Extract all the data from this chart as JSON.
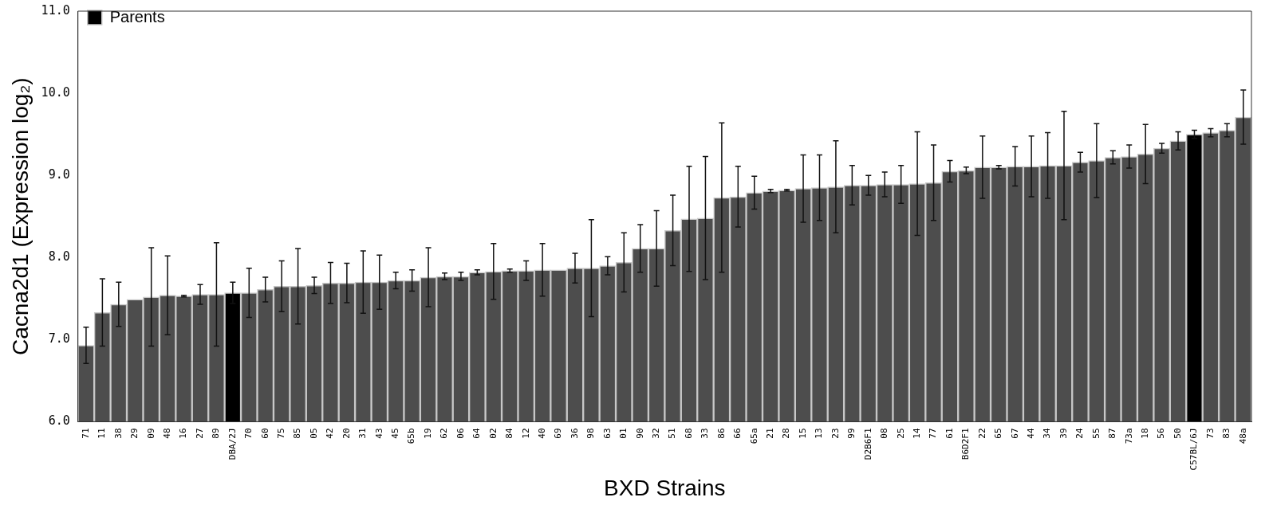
{
  "chart_data": {
    "type": "bar",
    "xlabel": "BXD Strains",
    "ylabel": "Cacna2d1 (Expression log₂)",
    "categories": [
      "71",
      "11",
      "38",
      "29",
      "09",
      "48",
      "16",
      "27",
      "89",
      "DBA/2J",
      "70",
      "60",
      "75",
      "85",
      "05",
      "42",
      "20",
      "31",
      "43",
      "45",
      "65b",
      "19",
      "62",
      "06",
      "64",
      "02",
      "84",
      "12",
      "40",
      "69",
      "36",
      "98",
      "63",
      "01",
      "90",
      "32",
      "51",
      "68",
      "33",
      "86",
      "66",
      "65a",
      "21",
      "28",
      "15",
      "13",
      "23",
      "99",
      "D2B6F1",
      "08",
      "25",
      "14",
      "77",
      "61",
      "B6D2F1",
      "22",
      "65",
      "67",
      "44",
      "34",
      "39",
      "24",
      "55",
      "87",
      "73a",
      "18",
      "56",
      "50",
      "C57BL/6J",
      "73",
      "83",
      "48a"
    ],
    "series": [
      {
        "color": "#4d4d4d",
        "values": [
          6.93,
          7.33,
          7.43,
          7.49,
          7.52,
          7.54,
          7.53,
          7.55,
          7.55,
          null,
          7.57,
          7.61,
          7.65,
          7.65,
          7.66,
          7.69,
          7.69,
          7.7,
          7.7,
          7.72,
          7.72,
          7.76,
          7.77,
          7.77,
          7.82,
          7.83,
          7.84,
          7.84,
          7.85,
          7.85,
          7.87,
          7.87,
          7.9,
          7.94,
          8.11,
          8.11,
          8.33,
          8.47,
          8.48,
          8.73,
          8.74,
          8.79,
          8.81,
          8.82,
          8.84,
          8.85,
          8.86,
          8.88,
          8.88,
          8.89,
          8.89,
          8.9,
          8.91,
          9.05,
          9.06,
          9.1,
          9.1,
          9.11,
          9.11,
          9.12,
          9.12,
          9.16,
          9.18,
          9.22,
          9.23,
          9.26,
          9.33,
          9.42,
          null,
          9.52,
          9.55,
          9.71
        ],
        "errors": [
          0.22,
          0.41,
          0.27,
          null,
          0.6,
          0.48,
          0.01,
          0.12,
          0.63,
          null,
          0.3,
          0.15,
          0.31,
          0.46,
          0.1,
          0.25,
          0.24,
          0.38,
          0.33,
          0.1,
          0.13,
          0.36,
          0.04,
          0.05,
          0.03,
          0.34,
          0.02,
          0.12,
          0.32,
          null,
          0.18,
          0.59,
          0.11,
          0.36,
          0.29,
          0.46,
          0.43,
          0.64,
          0.75,
          0.91,
          0.37,
          0.2,
          0.02,
          0.01,
          0.41,
          0.4,
          0.56,
          0.24,
          0.12,
          0.15,
          0.23,
          0.63,
          0.46,
          0.13,
          0.04,
          0.38,
          0.02,
          0.24,
          0.37,
          0.4,
          0.66,
          0.12,
          0.45,
          0.08,
          0.14,
          0.36,
          0.06,
          0.11,
          null,
          0.05,
          0.08,
          0.33
        ]
      },
      {
        "name": "Parents",
        "color": "#000000",
        "values": [
          null,
          null,
          null,
          null,
          null,
          null,
          null,
          null,
          null,
          7.57,
          null,
          null,
          null,
          null,
          null,
          null,
          null,
          null,
          null,
          null,
          null,
          null,
          null,
          null,
          null,
          null,
          null,
          null,
          null,
          null,
          null,
          null,
          null,
          null,
          null,
          null,
          null,
          null,
          null,
          null,
          null,
          null,
          null,
          null,
          null,
          null,
          null,
          null,
          null,
          null,
          null,
          null,
          null,
          null,
          null,
          null,
          null,
          null,
          null,
          null,
          null,
          null,
          null,
          null,
          null,
          null,
          null,
          null,
          9.5,
          null,
          null,
          null
        ],
        "errors": [
          null,
          null,
          null,
          null,
          null,
          null,
          null,
          null,
          null,
          0.13,
          null,
          null,
          null,
          null,
          null,
          null,
          null,
          null,
          null,
          null,
          null,
          null,
          null,
          null,
          null,
          null,
          null,
          null,
          null,
          null,
          null,
          null,
          null,
          null,
          null,
          null,
          null,
          null,
          null,
          null,
          null,
          null,
          null,
          null,
          null,
          null,
          null,
          null,
          null,
          null,
          null,
          null,
          null,
          null,
          null,
          null,
          null,
          null,
          null,
          null,
          null,
          null,
          null,
          null,
          null,
          null,
          null,
          null,
          0.05,
          null,
          null,
          null
        ]
      }
    ],
    "ylim": [
      6,
      11
    ],
    "yticks": [
      {
        "value": 6,
        "label": "6.0"
      },
      {
        "value": 7,
        "label": "7.0"
      },
      {
        "value": 8,
        "label": "8.0"
      },
      {
        "value": 9,
        "label": "9.0"
      },
      {
        "value": 10,
        "label": "10.0"
      },
      {
        "value": 11,
        "label": "11.0"
      }
    ],
    "grid": false,
    "legend": "top left"
  }
}
